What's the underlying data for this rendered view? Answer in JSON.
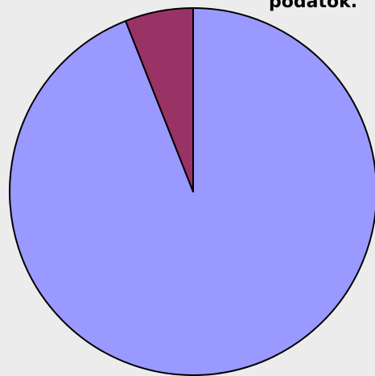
{
  "chart_data": {
    "type": "pie",
    "title": "",
    "corner_text": "podatok.",
    "slices": [
      {
        "value": 94.0,
        "color": "#9999ff"
      },
      {
        "value": 6.0,
        "color": "#993366"
      }
    ],
    "start_angle_deg": 0,
    "direction": "clockwise",
    "outline_color": "#000000"
  }
}
